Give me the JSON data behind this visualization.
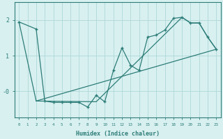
{
  "line1_x": [
    0,
    2,
    3,
    4,
    5,
    6,
    7,
    8,
    9,
    10,
    11,
    12,
    13,
    14,
    15,
    16,
    17,
    18,
    19,
    20,
    21,
    22,
    23
  ],
  "line1_y": [
    1.95,
    1.75,
    -0.28,
    -0.32,
    -0.32,
    -0.32,
    -0.32,
    -0.45,
    -0.12,
    -0.3,
    0.58,
    1.22,
    0.73,
    0.58,
    1.52,
    1.58,
    1.72,
    2.05,
    2.08,
    1.92,
    1.92,
    1.52,
    1.18
  ],
  "line2_x": [
    2,
    23
  ],
  "line2_y": [
    -0.28,
    1.18
  ],
  "line3_x": [
    0,
    2,
    9,
    19,
    20,
    21,
    22,
    23
  ],
  "line3_y": [
    1.95,
    -0.28,
    -0.3,
    2.08,
    1.92,
    1.92,
    1.52,
    1.18
  ],
  "line_color": "#2d7d78",
  "bg_color": "#d8f0f0",
  "grid_color": "#b0d8d8",
  "xlabel": "Humidex (Indice chaleur)",
  "xlim": [
    -0.5,
    23.5
  ],
  "ylim": [
    -0.75,
    2.5
  ],
  "xticks": [
    0,
    1,
    2,
    3,
    4,
    5,
    6,
    7,
    8,
    9,
    10,
    11,
    12,
    13,
    14,
    15,
    16,
    17,
    18,
    19,
    20,
    21,
    22,
    23
  ]
}
